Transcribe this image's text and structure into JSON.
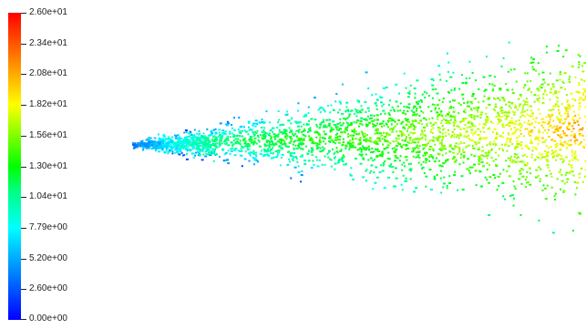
{
  "legend": {
    "labels": [
      "2.60e+01",
      "2.34e+01",
      "2.08e+01",
      "1.82e+01",
      "1.56e+01",
      "1.30e+01",
      "1.04e+01",
      "7.79e+00",
      "5.20e+00",
      "2.60e+00",
      "0.00e+00"
    ],
    "min": 0,
    "max": 26,
    "colors": [
      "#0000ff",
      "#0080ff",
      "#00ffff",
      "#00ff80",
      "#00ff00",
      "#80ff00",
      "#ffff00",
      "#ff8000",
      "#ff0000"
    ]
  }
}
